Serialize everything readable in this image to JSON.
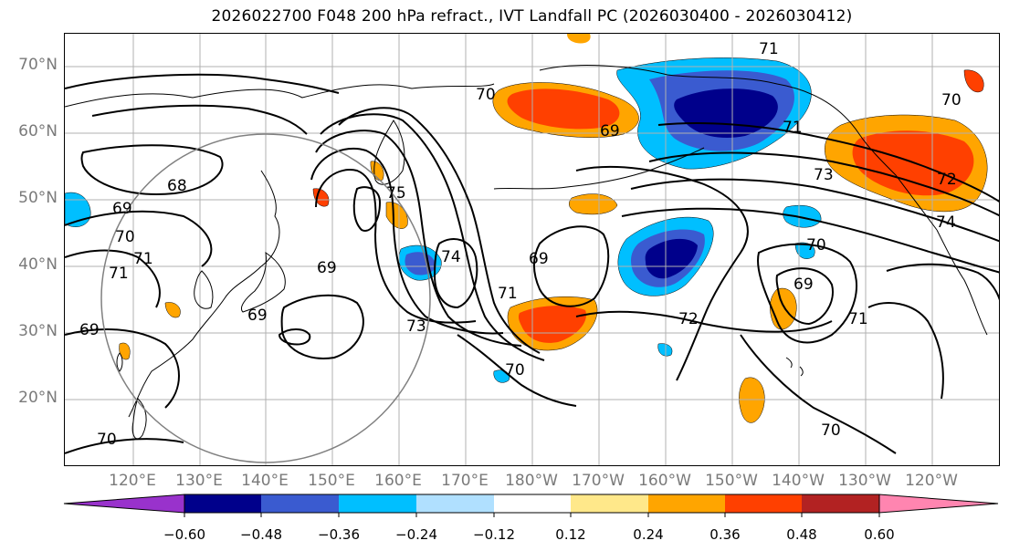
{
  "title": "2026022700 F048 200 hPa refract., IVT Landfall PC (2026030400 - 2026030412)",
  "lat_labels": [
    "70°N",
    "60°N",
    "50°N",
    "40°N",
    "30°N",
    "20°N"
  ],
  "lon_labels": [
    "120°E",
    "130°E",
    "140°E",
    "150°E",
    "160°E",
    "170°E",
    "180°W",
    "170°W",
    "160°W",
    "150°W",
    "140°W",
    "130°W",
    "120°W"
  ],
  "contour_labels": [
    "71",
    "70",
    "69",
    "68",
    "69",
    "70",
    "71",
    "71",
    "69",
    "69",
    "75",
    "73",
    "74",
    "71",
    "69",
    "70",
    "71",
    "72",
    "73",
    "74",
    "72",
    "70",
    "71",
    "69",
    "70",
    "69",
    "70",
    "70"
  ],
  "colorbar": {
    "ticks": [
      "−0.60",
      "−0.48",
      "−0.36",
      "−0.24",
      "−0.12",
      "0.12",
      "0.24",
      "0.36",
      "0.48",
      "0.60"
    ],
    "colors": [
      "#9932cc",
      "#00008b",
      "#3a5bd0",
      "#00bfff",
      "#b0e0ff",
      "#ffffff",
      "#ffe88a",
      "#ffa500",
      "#ff4000",
      "#b22222",
      "#ff85b0"
    ]
  },
  "colors": {
    "grid": "#b0b0b0",
    "coast": "#000000",
    "contour": "#000000",
    "circle": "#808080"
  }
}
